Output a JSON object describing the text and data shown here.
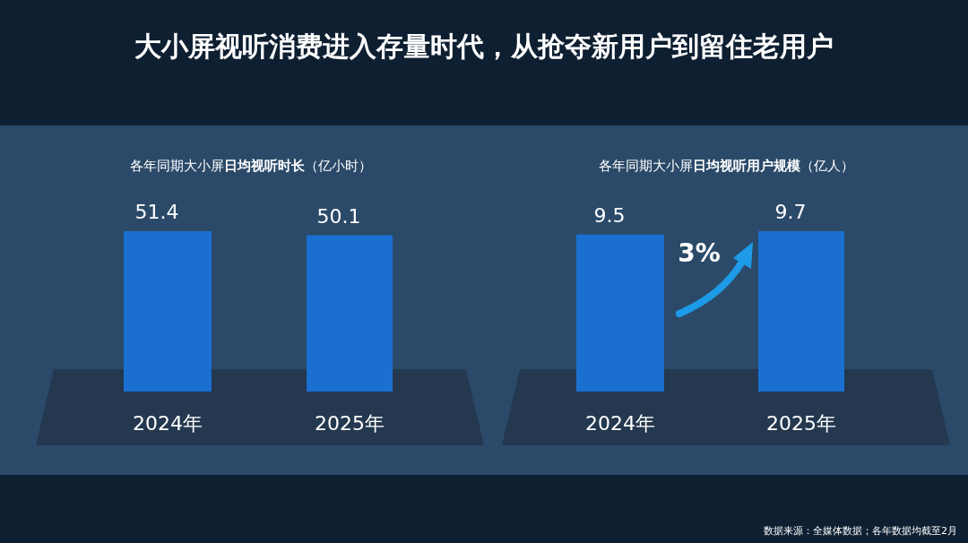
{
  "chart_data": [
    {
      "type": "bar",
      "title": "大小屏视听消费进入存量时代，从抢夺新用户到留住老用户",
      "subtitle": "各年同期大小屏**日均视听时长**（亿小时）",
      "categories": [
        "2024年",
        "2025年"
      ],
      "values": [
        51.4,
        50.1
      ],
      "color": "#1a6fd0",
      "data_labels": true
    },
    {
      "type": "bar",
      "title": "各年同期大小屏**日均视听用户规模**（亿人）",
      "categories": [
        "2024年",
        "2025年"
      ],
      "values": [
        9.5,
        9.7
      ],
      "color": "#1a6fd0",
      "data_labels": true,
      "annotations": [
        "3%",
        "数据来源：全媒体数据；各年数据均截至2月"
      ]
    }
  ]
}
